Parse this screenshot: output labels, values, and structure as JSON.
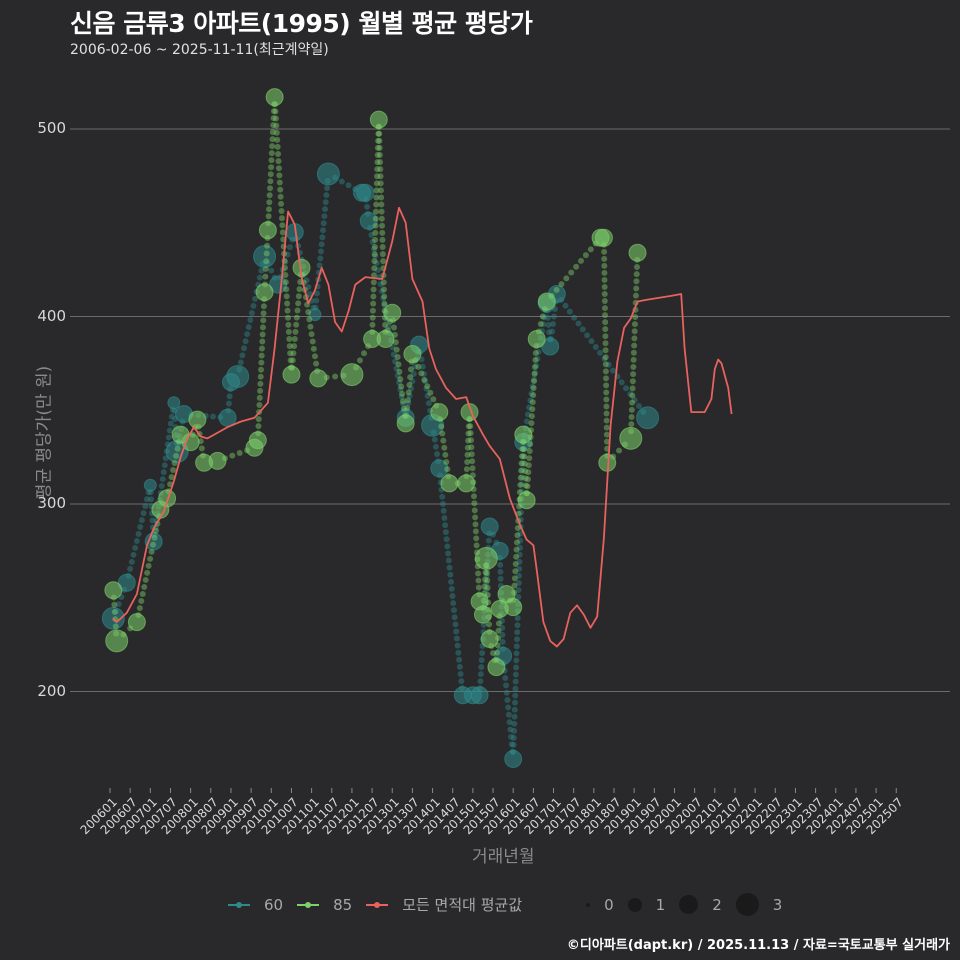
{
  "header": {
    "title": "신음 금류3 아파트(1995) 월별 평균 평당가",
    "subtitle": "2006-02-06 ~ 2025-11-11(최근계약일)"
  },
  "axes": {
    "ylabel": "평균 평당가(만 원)",
    "xlabel": "거래년월",
    "yticks": [
      "500",
      "400",
      "300",
      "200"
    ],
    "xticks": [
      "200601",
      "200607",
      "200701",
      "200707",
      "200801",
      "200807",
      "200901",
      "200907",
      "201001",
      "201007",
      "201101",
      "201107",
      "201201",
      "201207",
      "201301",
      "201307",
      "201401",
      "201407",
      "201501",
      "201507",
      "201601",
      "201607",
      "201701",
      "201707",
      "201801",
      "201807",
      "201901",
      "201907",
      "202001",
      "202007",
      "202101",
      "202107",
      "202201",
      "202207",
      "202301",
      "202307",
      "202401",
      "202407",
      "202501",
      "202507"
    ]
  },
  "legend": {
    "series": [
      {
        "label": "60",
        "color": "#2f8a8c"
      },
      {
        "label": "85",
        "color": "#7ed16b"
      },
      {
        "label": "모든 면적대 평균값",
        "color": "#e8625e"
      }
    ],
    "sizes": [
      "0",
      "1",
      "2",
      "3"
    ]
  },
  "footer": {
    "credit": "©디아파트(dapt.kr) / 2025.11.13 / 자료=국토교통부 실거래가"
  },
  "chart_data": {
    "type": "scatter",
    "title": "신음 금류3 아파트(1995) 월별 평균 평당가",
    "subtitle": "2006-02-06 ~ 2025-11-11(최근계약일)",
    "xlabel": "거래년월",
    "ylabel": "평균 평당가(만 원)",
    "ylim": [
      145,
      530
    ],
    "grid": true,
    "legend_position": "bottom",
    "x_unit": "months since 2006-01",
    "series": [
      {
        "name": "60",
        "color": "#2f8a8c",
        "points": [
          [
            1,
            239,
            3
          ],
          [
            5,
            258,
            2
          ],
          [
            13,
            280,
            2
          ],
          [
            12,
            310,
            1
          ],
          [
            19,
            354,
            1
          ],
          [
            20,
            328,
            3
          ],
          [
            22,
            348,
            2
          ],
          [
            35,
            346,
            2
          ],
          [
            36,
            365,
            2
          ],
          [
            38,
            368,
            3
          ],
          [
            46,
            432,
            3
          ],
          [
            50,
            417,
            2
          ],
          [
            55,
            445,
            2
          ],
          [
            61,
            401,
            1
          ],
          [
            65,
            476,
            3
          ],
          [
            75,
            466,
            2
          ],
          [
            76,
            466,
            2
          ],
          [
            77,
            451,
            2
          ],
          [
            88,
            346,
            2
          ],
          [
            92,
            385,
            2
          ],
          [
            96,
            342,
            3
          ],
          [
            98,
            319,
            2
          ],
          [
            105,
            198,
            2
          ],
          [
            108,
            198,
            2
          ],
          [
            110,
            198,
            2
          ],
          [
            113,
            288,
            2
          ],
          [
            116,
            275,
            2
          ],
          [
            117,
            219,
            2
          ],
          [
            120,
            164,
            2
          ],
          [
            123,
            333,
            2
          ],
          [
            131,
            384,
            2
          ],
          [
            130,
            407,
            2
          ],
          [
            133,
            412,
            2
          ],
          [
            160,
            346,
            3
          ]
        ]
      },
      {
        "name": "85",
        "color": "#7ed16b",
        "points": [
          [
            1,
            254,
            2
          ],
          [
            2,
            227,
            3
          ],
          [
            8,
            237,
            2
          ],
          [
            15,
            297,
            2
          ],
          [
            17,
            303,
            2
          ],
          [
            21,
            337,
            2
          ],
          [
            24,
            333,
            2
          ],
          [
            26,
            345,
            2
          ],
          [
            28,
            322,
            2
          ],
          [
            32,
            323,
            2
          ],
          [
            43,
            330,
            2
          ],
          [
            44,
            334,
            2
          ],
          [
            46,
            413,
            2
          ],
          [
            47,
            446,
            2
          ],
          [
            49,
            517,
            2
          ],
          [
            57,
            426,
            2
          ],
          [
            54,
            369,
            2
          ],
          [
            62,
            367,
            2
          ],
          [
            72,
            369,
            3
          ],
          [
            80,
            505,
            2
          ],
          [
            78,
            388,
            2
          ],
          [
            82,
            388,
            2
          ],
          [
            84,
            402,
            2
          ],
          [
            88,
            343,
            2
          ],
          [
            90,
            380,
            2
          ],
          [
            98,
            349,
            2
          ],
          [
            101,
            311,
            2
          ],
          [
            106,
            311,
            2
          ],
          [
            107,
            349,
            2
          ],
          [
            110,
            248,
            2
          ],
          [
            111,
            241,
            2
          ],
          [
            112,
            271,
            3
          ],
          [
            113,
            228,
            2
          ],
          [
            115,
            213,
            2
          ],
          [
            116,
            244,
            2
          ],
          [
            118,
            252,
            2
          ],
          [
            120,
            245,
            2
          ],
          [
            123,
            337,
            2
          ],
          [
            124,
            302,
            2
          ],
          [
            127,
            388,
            2
          ],
          [
            130,
            408,
            2
          ],
          [
            146,
            442,
            2
          ],
          [
            147,
            442,
            2
          ],
          [
            148,
            322,
            2
          ],
          [
            155,
            335,
            3
          ],
          [
            157,
            434,
            2
          ]
        ]
      },
      {
        "name": "모든 면적대 평균값",
        "color": "#e8625e",
        "type": "line",
        "points": [
          [
            1,
            239
          ],
          [
            2,
            237
          ],
          [
            5,
            242
          ],
          [
            8,
            252
          ],
          [
            11,
            278
          ],
          [
            13,
            287
          ],
          [
            16,
            296
          ],
          [
            19,
            312
          ],
          [
            21,
            325
          ],
          [
            23,
            335
          ],
          [
            25,
            341
          ],
          [
            27,
            336
          ],
          [
            29,
            335
          ],
          [
            31,
            337
          ],
          [
            35,
            341
          ],
          [
            39,
            344
          ],
          [
            43,
            346
          ],
          [
            47,
            354
          ],
          [
            49,
            383
          ],
          [
            51,
            418
          ],
          [
            53,
            456
          ],
          [
            55,
            449
          ],
          [
            57,
            421
          ],
          [
            59,
            407
          ],
          [
            61,
            414
          ],
          [
            63,
            426
          ],
          [
            65,
            417
          ],
          [
            67,
            397
          ],
          [
            69,
            392
          ],
          [
            71,
            403
          ],
          [
            73,
            417
          ],
          [
            76,
            421
          ],
          [
            81,
            420
          ],
          [
            84,
            440
          ],
          [
            86,
            458
          ],
          [
            88,
            450
          ],
          [
            90,
            420
          ],
          [
            93,
            408
          ],
          [
            95,
            383
          ],
          [
            97,
            372
          ],
          [
            100,
            362
          ],
          [
            103,
            356
          ],
          [
            106,
            357
          ],
          [
            108,
            347
          ],
          [
            111,
            337
          ],
          [
            113,
            331
          ],
          [
            116,
            324
          ],
          [
            119,
            303
          ],
          [
            122,
            289
          ],
          [
            124,
            281
          ],
          [
            126,
            278
          ],
          [
            127,
            265
          ],
          [
            129,
            237
          ],
          [
            131,
            227
          ],
          [
            133,
            224
          ],
          [
            135,
            228
          ],
          [
            137,
            242
          ],
          [
            139,
            246
          ],
          [
            141,
            241
          ],
          [
            143,
            234
          ],
          [
            145,
            240
          ],
          [
            147,
            282
          ],
          [
            149,
            342
          ],
          [
            151,
            376
          ],
          [
            153,
            394
          ],
          [
            155,
            399
          ],
          [
            157,
            408
          ],
          [
            160,
            409
          ],
          [
            167,
            411
          ],
          [
            170,
            412
          ],
          [
            171,
            383
          ],
          [
            173,
            349
          ],
          [
            177,
            349
          ],
          [
            179,
            356
          ],
          [
            180,
            372
          ],
          [
            181,
            377
          ],
          [
            182,
            375
          ],
          [
            184,
            362
          ],
          [
            185,
            348
          ]
        ]
      }
    ],
    "size_scale": {
      "values": [
        0,
        1,
        2,
        3
      ]
    }
  }
}
